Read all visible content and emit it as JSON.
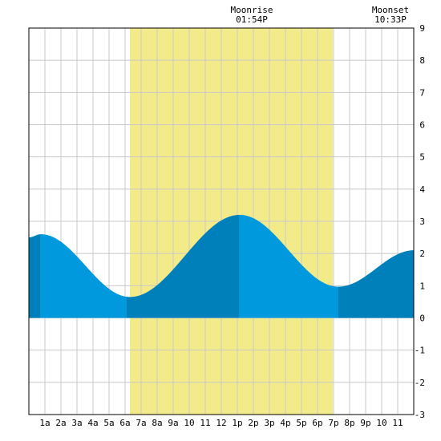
{
  "chart_data": {
    "type": "area",
    "title": "",
    "xlabel": "",
    "ylabel": "",
    "x_unit": "hours since midnight",
    "xlim": [
      0,
      24
    ],
    "ylim": [
      -3,
      9
    ],
    "x_ticks": [
      {
        "x": 1,
        "label": "1a"
      },
      {
        "x": 2,
        "label": "2a"
      },
      {
        "x": 3,
        "label": "3a"
      },
      {
        "x": 4,
        "label": "4a"
      },
      {
        "x": 5,
        "label": "5a"
      },
      {
        "x": 6,
        "label": "6a"
      },
      {
        "x": 7,
        "label": "7a"
      },
      {
        "x": 8,
        "label": "8a"
      },
      {
        "x": 9,
        "label": "9a"
      },
      {
        "x": 10,
        "label": "10"
      },
      {
        "x": 11,
        "label": "11"
      },
      {
        "x": 12,
        "label": "12"
      },
      {
        "x": 13,
        "label": "1p"
      },
      {
        "x": 14,
        "label": "2p"
      },
      {
        "x": 15,
        "label": "3p"
      },
      {
        "x": 16,
        "label": "4p"
      },
      {
        "x": 17,
        "label": "5p"
      },
      {
        "x": 18,
        "label": "6p"
      },
      {
        "x": 19,
        "label": "7p"
      },
      {
        "x": 20,
        "label": "8p"
      },
      {
        "x": 21,
        "label": "9p"
      },
      {
        "x": 22,
        "label": "10"
      },
      {
        "x": 23,
        "label": "11"
      }
    ],
    "y_ticks": [
      -3,
      -2,
      -1,
      0,
      1,
      2,
      3,
      4,
      5,
      6,
      7,
      8,
      9
    ],
    "grid": true,
    "daylight": {
      "start": 6.3,
      "end": 18.95
    },
    "segment_breaks": [
      0.7,
      6.1,
      13.1,
      19.3
    ],
    "tide_points": [
      [
        0,
        2.5
      ],
      [
        0.75,
        2.6
      ],
      [
        6.3,
        0.65
      ],
      [
        13.15,
        3.2
      ],
      [
        19.3,
        0.97
      ],
      [
        24,
        2.1
      ]
    ],
    "moonrise": {
      "label": "Moonrise",
      "time": "01:54P",
      "x": 13.9
    },
    "moonset": {
      "label": "Moonset",
      "time": "10:33P",
      "x": 22.55
    },
    "colors": {
      "background": "#ffffff",
      "daylight": "#f3eb8a",
      "grid": "#c8c8c8",
      "tide_light": "#0099dd",
      "tide_dark": "#0080bb",
      "axis": "#000000"
    }
  }
}
